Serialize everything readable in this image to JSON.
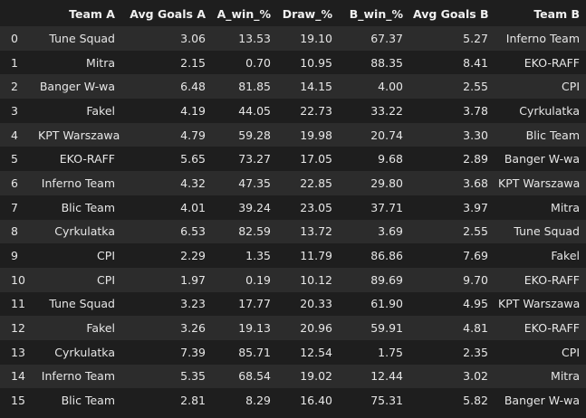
{
  "table": {
    "headers": [
      "",
      "Team A",
      "Avg Goals A",
      "A_win_%",
      "Draw_%",
      "B_win_%",
      "Avg Goals B",
      "Team B"
    ],
    "rows": [
      [
        "0",
        "Tune Squad",
        "3.06",
        "13.53",
        "19.10",
        "67.37",
        "5.27",
        "Inferno Team"
      ],
      [
        "1",
        "Mitra",
        "2.15",
        "0.70",
        "10.95",
        "88.35",
        "8.41",
        "EKO-RAFF"
      ],
      [
        "2",
        "Banger W-wa",
        "6.48",
        "81.85",
        "14.15",
        "4.00",
        "2.55",
        "CPI"
      ],
      [
        "3",
        "Fakel",
        "4.19",
        "44.05",
        "22.73",
        "33.22",
        "3.78",
        "Cyrkulatka"
      ],
      [
        "4",
        "KPT Warszawa",
        "4.79",
        "59.28",
        "19.98",
        "20.74",
        "3.30",
        "Blic Team"
      ],
      [
        "5",
        "EKO-RAFF",
        "5.65",
        "73.27",
        "17.05",
        "9.68",
        "2.89",
        "Banger W-wa"
      ],
      [
        "6",
        "Inferno Team",
        "4.32",
        "47.35",
        "22.85",
        "29.80",
        "3.68",
        "KPT Warszawa"
      ],
      [
        "7",
        "Blic Team",
        "4.01",
        "39.24",
        "23.05",
        "37.71",
        "3.97",
        "Mitra"
      ],
      [
        "8",
        "Cyrkulatka",
        "6.53",
        "82.59",
        "13.72",
        "3.69",
        "2.55",
        "Tune Squad"
      ],
      [
        "9",
        "CPI",
        "2.29",
        "1.35",
        "11.79",
        "86.86",
        "7.69",
        "Fakel"
      ],
      [
        "10",
        "CPI",
        "1.97",
        "0.19",
        "10.12",
        "89.69",
        "9.70",
        "EKO-RAFF"
      ],
      [
        "11",
        "Tune Squad",
        "3.23",
        "17.77",
        "20.33",
        "61.90",
        "4.95",
        "KPT Warszawa"
      ],
      [
        "12",
        "Fakel",
        "3.26",
        "19.13",
        "20.96",
        "59.91",
        "4.81",
        "EKO-RAFF"
      ],
      [
        "13",
        "Cyrkulatka",
        "7.39",
        "85.71",
        "12.54",
        "1.75",
        "2.35",
        "CPI"
      ],
      [
        "14",
        "Inferno Team",
        "5.35",
        "68.54",
        "19.02",
        "12.44",
        "3.02",
        "Mitra"
      ],
      [
        "15",
        "Blic Team",
        "2.81",
        "8.29",
        "16.40",
        "75.31",
        "5.82",
        "Banger W-wa"
      ]
    ]
  }
}
